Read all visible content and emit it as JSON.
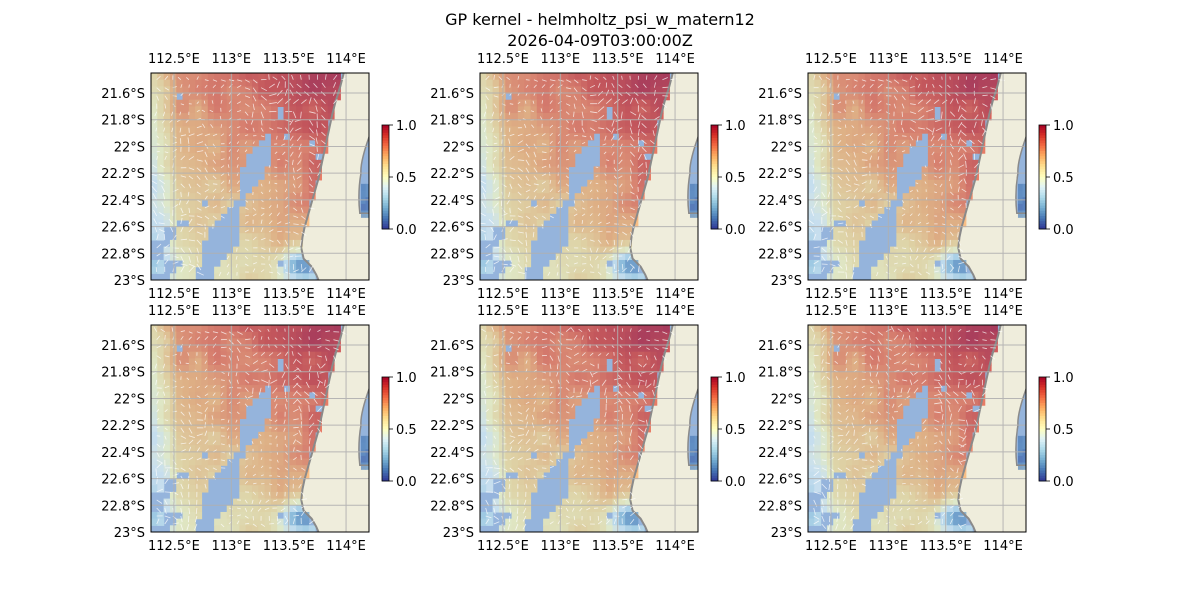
{
  "figure": {
    "title_line1": "GP kernel - helmholtz_psi_w_matern12",
    "title_line2": "2026-04-09T03:00:00Z"
  },
  "colors": {
    "ocean_nodata": "#95b4dc",
    "land": "#efeddc",
    "coastline": "#8a8a8a",
    "gridlines": "#b0b0b0",
    "vectors": "#ffffff"
  },
  "colormap": {
    "name": "RdYlBu_r",
    "stops": [
      "#313695",
      "#4575b4",
      "#74add1",
      "#abd9e9",
      "#e0f3f8",
      "#ffffbf",
      "#fee090",
      "#fdae61",
      "#f46d43",
      "#d73027",
      "#a50026"
    ],
    "field_alpha": 0.7,
    "range": [
      0.0,
      1.0
    ]
  },
  "chart_data": {
    "type": "heatmap",
    "title": "GP kernel - helmholtz_psi_w_matern12",
    "subtitle": "2026-04-09T03:00:00Z",
    "rows": 2,
    "cols": 3,
    "panel_count": 6,
    "lon_range": [
      112.3,
      114.2
    ],
    "lat_range": [
      -23.0,
      -21.45
    ],
    "lon_ticks": [
      112.5,
      113.0,
      113.5,
      114.0
    ],
    "lon_tick_labels": [
      "112.5°E",
      "113°E",
      "113.5°E",
      "114°E"
    ],
    "lat_ticks": [
      -21.6,
      -21.8,
      -22.0,
      -22.2,
      -22.4,
      -22.6,
      -22.8,
      -23.0
    ],
    "lat_tick_labels": [
      "21.6°S",
      "21.8°S",
      "22°S",
      "22.2°S",
      "22.4°S",
      "22.6°S",
      "22.8°S",
      "23°S"
    ],
    "colorbar": {
      "min": 0.0,
      "max": 1.0,
      "ticks": [
        0.0,
        0.5,
        1.0
      ],
      "tick_labels": [
        "0.0",
        "0.5",
        "1.0"
      ]
    },
    "grid": true,
    "field_description": "normalised GP kernel magnitude, highest (~0.85-0.95) in the north-east, decreasing south-westward; lowest values (~0.0-0.2) near 113.6°E 22.9°S; a data-free band runs from the north-west to the south"
  }
}
